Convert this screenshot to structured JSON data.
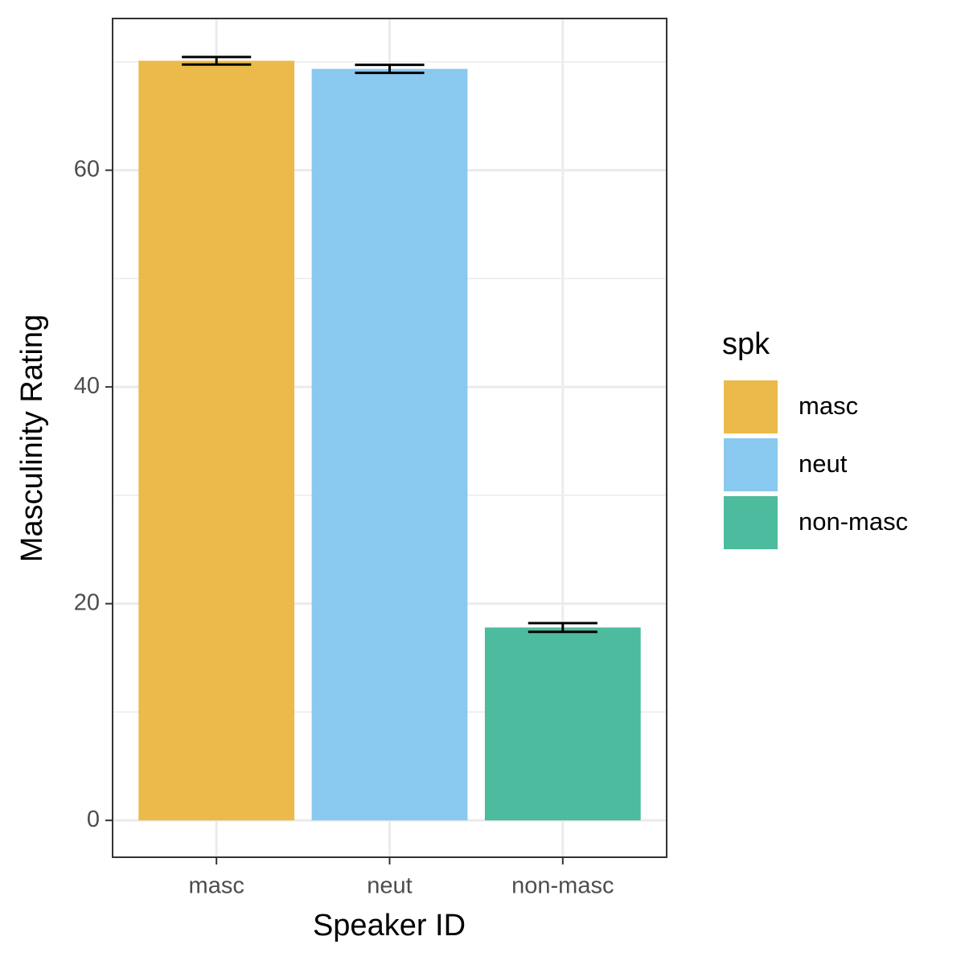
{
  "chart_data": {
    "type": "bar",
    "x_label": "Speaker ID",
    "y_label": "Masculinity Rating",
    "categories": [
      "masc",
      "neut",
      "non-masc"
    ],
    "values": [
      70.1,
      69.35,
      17.8
    ],
    "errors": [
      0.35,
      0.37,
      0.4
    ],
    "colors": [
      "#ebba4a",
      "#8ac9ef",
      "#4dbb9d"
    ],
    "legend_title": "spk",
    "legend_position": "right",
    "ylim": [
      -3.4,
      74
    ],
    "yticks": [
      0,
      20,
      40,
      60
    ],
    "y_minor_ticks": [
      10,
      30,
      50,
      70
    ],
    "grid": true
  }
}
